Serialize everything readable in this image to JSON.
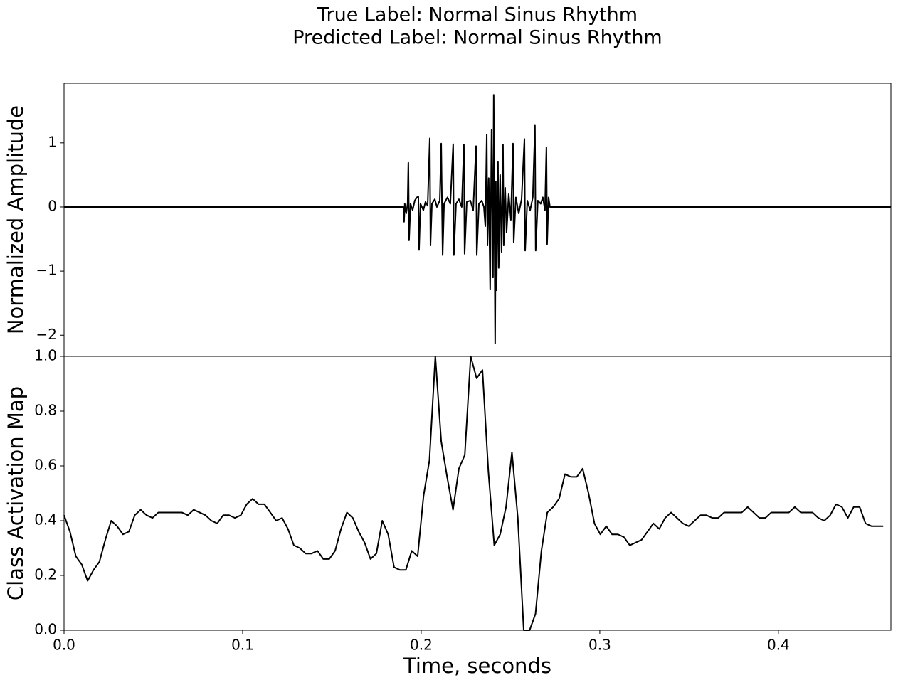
{
  "title": [
    "True Label: Normal Sinus Rhythm",
    "Predicted Label: Normal Sinus Rhythm"
  ],
  "chart_data": [
    {
      "type": "line",
      "ylabel": "Normalized Amplitude",
      "color": "#000000",
      "xlim": [
        0,
        0.463
      ],
      "ylim": [
        -2.33,
        1.93
      ],
      "yticks": [
        {
          "value": -2,
          "label": "−2"
        },
        {
          "value": -1,
          "label": "−1"
        },
        0,
        1
      ],
      "x": [
        0,
        0.19,
        0.1904,
        0.1908,
        0.1916,
        0.1924,
        0.1928,
        0.1932,
        0.194,
        0.1952,
        0.1964,
        0.1976,
        0.1984,
        0.1988,
        0.1996,
        0.2012,
        0.2024,
        0.2036,
        0.2048,
        0.2052,
        0.206,
        0.2076,
        0.2088,
        0.2104,
        0.2112,
        0.212,
        0.2128,
        0.2147,
        0.2163,
        0.2179,
        0.2183,
        0.2195,
        0.2211,
        0.2227,
        0.2239,
        0.2243,
        0.2255,
        0.2275,
        0.2291,
        0.2307,
        0.2311,
        0.2323,
        0.2339,
        0.2351,
        0.2359,
        0.2367,
        0.2371,
        0.2378,
        0.2386,
        0.2394,
        0.2402,
        0.2406,
        0.2414,
        0.2418,
        0.2422,
        0.243,
        0.2434,
        0.2442,
        0.245,
        0.2458,
        0.2462,
        0.247,
        0.2478,
        0.249,
        0.2502,
        0.2514,
        0.2518,
        0.253,
        0.2546,
        0.2562,
        0.2578,
        0.2582,
        0.2594,
        0.261,
        0.2625,
        0.2637,
        0.2641,
        0.2653,
        0.2669,
        0.2681,
        0.2693,
        0.2701,
        0.2705,
        0.2713,
        0.2721,
        0.2725,
        0.463
      ],
      "values": [
        0,
        0,
        -0.23,
        0.05,
        -0.1,
        0.05,
        0.69,
        -0.52,
        0.05,
        -0.05,
        0.1,
        0.15,
        0.16,
        -0.67,
        0.05,
        -0.05,
        0.08,
        0.02,
        1.07,
        -0.6,
        0.05,
        0.12,
        0,
        0.1,
        0.99,
        -0.75,
        0.05,
        0.15,
        0.05,
        0.98,
        -0.75,
        0.05,
        0.12,
        0,
        0.97,
        -0.73,
        0.08,
        0.1,
        -0.05,
        0.95,
        -0.75,
        0.05,
        0.1,
        0,
        -0.3,
        1.13,
        -0.6,
        0.45,
        -1.28,
        1.2,
        -1.1,
        1.75,
        -2.13,
        0.4,
        -1.3,
        0.7,
        -0.95,
        0.5,
        -0.7,
        0.97,
        -0.6,
        0.3,
        -0.4,
        0.2,
        -0.2,
        0.99,
        -0.55,
        0.15,
        -0.1,
        0.12,
        1.06,
        -0.68,
        0.1,
        -0.05,
        0.15,
        1.27,
        -0.68,
        0.1,
        0.05,
        0.15,
        -0.05,
        0.93,
        -0.58,
        0.15,
        0,
        0,
        0
      ]
    },
    {
      "type": "line",
      "ylabel": "Class Activation Map",
      "xlabel": "Time, seconds",
      "color": "#000000",
      "xlim": [
        0,
        0.463
      ],
      "ylim": [
        0,
        1
      ],
      "xticks": [
        {
          "value": 0,
          "label": "0.0"
        },
        0.1,
        0.2,
        0.3,
        0.4
      ],
      "yticks": [
        {
          "value": 0,
          "label": "0.0"
        },
        0.2,
        0.4,
        0.6,
        0.8,
        {
          "value": 1,
          "label": "1.0"
        }
      ],
      "x": [
        0,
        0.0033,
        0.0066,
        0.0099,
        0.0132,
        0.0165,
        0.0198,
        0.0231,
        0.0264,
        0.0297,
        0.033,
        0.0363,
        0.0396,
        0.0429,
        0.0462,
        0.0495,
        0.0528,
        0.0561,
        0.0594,
        0.0627,
        0.066,
        0.0693,
        0.0726,
        0.0759,
        0.0792,
        0.0825,
        0.0858,
        0.0891,
        0.0924,
        0.0957,
        0.099,
        0.1023,
        0.1056,
        0.1089,
        0.1122,
        0.1155,
        0.1188,
        0.1221,
        0.1254,
        0.1287,
        0.132,
        0.1353,
        0.1386,
        0.1419,
        0.1452,
        0.1485,
        0.1518,
        0.1551,
        0.1584,
        0.1617,
        0.165,
        0.1683,
        0.1716,
        0.1749,
        0.1782,
        0.1815,
        0.1848,
        0.1881,
        0.1914,
        0.1947,
        0.198,
        0.2013,
        0.2046,
        0.2079,
        0.2112,
        0.2145,
        0.2178,
        0.2211,
        0.2244,
        0.2277,
        0.231,
        0.2343,
        0.2376,
        0.2409,
        0.2442,
        0.2475,
        0.2508,
        0.2541,
        0.2574,
        0.2607,
        0.264,
        0.2673,
        0.2706,
        0.2739,
        0.2772,
        0.2805,
        0.2838,
        0.2871,
        0.2904,
        0.2937,
        0.297,
        0.3003,
        0.3036,
        0.3069,
        0.3102,
        0.3135,
        0.3168,
        0.3201,
        0.3234,
        0.3267,
        0.33,
        0.3333,
        0.3366,
        0.3399,
        0.3432,
        0.3465,
        0.3498,
        0.3531,
        0.3564,
        0.3597,
        0.363,
        0.3663,
        0.3696,
        0.3729,
        0.3762,
        0.3795,
        0.3828,
        0.3861,
        0.3894,
        0.3927,
        0.396,
        0.3993,
        0.4026,
        0.4059,
        0.4092,
        0.4125,
        0.4158,
        0.4191,
        0.4224,
        0.4257,
        0.429,
        0.4323,
        0.4356,
        0.4389,
        0.4422,
        0.4455,
        0.4488,
        0.4521,
        0.4554,
        0.4587
      ],
      "values": [
        0.42,
        0.36,
        0.27,
        0.24,
        0.18,
        0.22,
        0.25,
        0.33,
        0.4,
        0.38,
        0.35,
        0.36,
        0.42,
        0.44,
        0.42,
        0.41,
        0.43,
        0.43,
        0.43,
        0.43,
        0.43,
        0.42,
        0.44,
        0.43,
        0.42,
        0.4,
        0.39,
        0.42,
        0.42,
        0.41,
        0.42,
        0.46,
        0.48,
        0.46,
        0.46,
        0.43,
        0.4,
        0.41,
        0.37,
        0.31,
        0.3,
        0.28,
        0.28,
        0.29,
        0.26,
        0.26,
        0.29,
        0.37,
        0.43,
        0.41,
        0.36,
        0.32,
        0.26,
        0.28,
        0.4,
        0.35,
        0.23,
        0.22,
        0.22,
        0.29,
        0.27,
        0.49,
        0.62,
        1.0,
        0.69,
        0.56,
        0.44,
        0.59,
        0.64,
        1.0,
        0.92,
        0.95,
        0.58,
        0.31,
        0.35,
        0.45,
        0.65,
        0.41,
        0,
        0,
        0.06,
        0.29,
        0.43,
        0.45,
        0.48,
        0.57,
        0.56,
        0.56,
        0.59,
        0.5,
        0.39,
        0.35,
        0.38,
        0.35,
        0.35,
        0.34,
        0.31,
        0.32,
        0.33,
        0.36,
        0.39,
        0.37,
        0.41,
        0.43,
        0.41,
        0.39,
        0.38,
        0.4,
        0.42,
        0.42,
        0.41,
        0.41,
        0.43,
        0.43,
        0.43,
        0.43,
        0.45,
        0.43,
        0.41,
        0.41,
        0.43,
        0.43,
        0.43,
        0.43,
        0.45,
        0.43,
        0.43,
        0.43,
        0.41,
        0.4,
        0.42,
        0.46,
        0.45,
        0.41,
        0.45,
        0.45,
        0.39,
        0.38,
        0.38,
        0.38
      ]
    }
  ]
}
